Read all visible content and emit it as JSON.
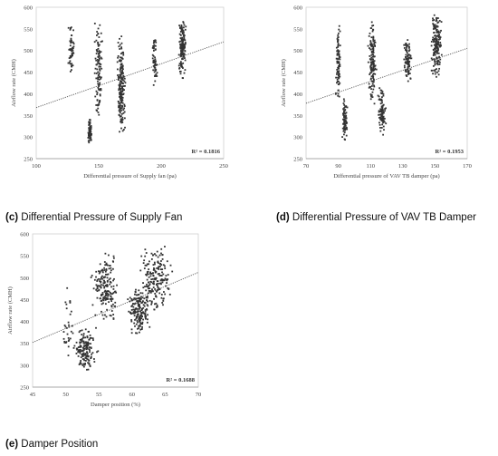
{
  "chart_data": [
    {
      "id": "c",
      "type": "scatter",
      "xlabel": "Differential pressure of Supply fan (pa)",
      "ylabel": "Airflow rate (CMH)",
      "xlim": [
        100,
        250
      ],
      "ylim": [
        250,
        600
      ],
      "xticks": [
        100,
        150,
        200,
        250
      ],
      "yticks": [
        250,
        300,
        350,
        400,
        450,
        500,
        550,
        600
      ],
      "r2_label": "R² = 0.1816",
      "trendline": {
        "x": [
          100,
          250
        ],
        "y": [
          368,
          520
        ]
      },
      "clusters": [
        {
          "x": 128,
          "xspread": 2.5,
          "y": [
            435,
            555
          ],
          "n": 55
        },
        {
          "x": 143,
          "xspread": 2,
          "y": [
            285,
            345
          ],
          "n": 70
        },
        {
          "x": 150,
          "xspread": 4,
          "y": [
            335,
            575
          ],
          "n": 110
        },
        {
          "x": 168,
          "xspread": 4,
          "y": [
            298,
            535
          ],
          "n": 190
        },
        {
          "x": 195,
          "xspread": 2.5,
          "y": [
            415,
            530
          ],
          "n": 60
        },
        {
          "x": 217,
          "xspread": 3.5,
          "y": [
            430,
            590
          ],
          "n": 140
        }
      ],
      "grid": false,
      "legend": "none"
    },
    {
      "id": "d",
      "type": "scatter",
      "xlabel": "Differential pressure of VAV TB damper (pa)",
      "ylabel": "Airflow rate (CMH)",
      "xlim": [
        70,
        170
      ],
      "ylim": [
        250,
        600
      ],
      "xticks": [
        70,
        90,
        110,
        130,
        150,
        170
      ],
      "yticks": [
        250,
        300,
        350,
        400,
        450,
        500,
        550,
        600
      ],
      "r2_label": "R² = 0.1953",
      "trendline": {
        "x": [
          70,
          170
        ],
        "y": [
          378,
          505
        ]
      },
      "clusters": [
        {
          "x": 90,
          "xspread": 2,
          "y": [
            385,
            560
          ],
          "n": 90
        },
        {
          "x": 94,
          "xspread": 2,
          "y": [
            285,
            400
          ],
          "n": 80
        },
        {
          "x": 111,
          "xspread": 3,
          "y": [
            370,
            575
          ],
          "n": 140
        },
        {
          "x": 117,
          "xspread": 3,
          "y": [
            300,
            420
          ],
          "n": 90
        },
        {
          "x": 133,
          "xspread": 3,
          "y": [
            425,
            535
          ],
          "n": 90
        },
        {
          "x": 151,
          "xspread": 4,
          "y": [
            430,
            590
          ],
          "n": 170
        }
      ],
      "grid": false,
      "legend": "none"
    },
    {
      "id": "e",
      "type": "scatter",
      "xlabel": "Damper position (%)",
      "ylabel": "Airflow rate (CMH)",
      "xlim": [
        45,
        70
      ],
      "ylim": [
        250,
        600
      ],
      "xticks": [
        45,
        50,
        55,
        60,
        65,
        70
      ],
      "yticks": [
        250,
        300,
        350,
        400,
        450,
        500,
        550,
        600
      ],
      "r2_label": "R² = 0.1688",
      "trendline": {
        "x": [
          45,
          70
        ],
        "y": [
          352,
          512
        ]
      },
      "clusters": [
        {
          "x": 53,
          "xspread": 2.2,
          "y": [
            285,
            390
          ],
          "n": 150
        },
        {
          "x": 56,
          "xspread": 2.5,
          "y": [
            400,
            560
          ],
          "n": 180
        },
        {
          "x": 61,
          "xspread": 2.2,
          "y": [
            370,
            480
          ],
          "n": 180
        },
        {
          "x": 63.5,
          "xspread": 3.2,
          "y": [
            420,
            580
          ],
          "n": 190
        },
        {
          "x": 50.5,
          "xspread": 1.2,
          "y": [
            310,
            480
          ],
          "n": 30
        }
      ],
      "grid": false,
      "legend": "none"
    }
  ],
  "captions": {
    "c": {
      "letter": "(c)",
      "text": " Differential Pressure of Supply Fan"
    },
    "d": {
      "letter": "(d)",
      "text": " Differential Pressure of VAV TB Damper"
    },
    "e": {
      "letter": "(e)",
      "text": " Damper Position"
    }
  },
  "colors": {
    "point": "#333333",
    "trend": "#555555",
    "axis": "#999999",
    "text": "#444444"
  }
}
